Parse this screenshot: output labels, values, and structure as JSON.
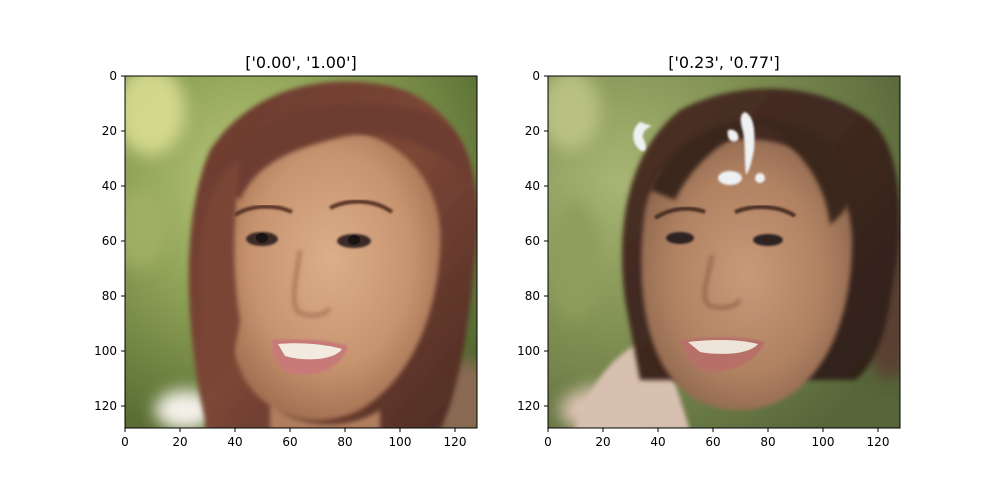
{
  "figure": {
    "panels": [
      {
        "title": "['0.00', '1.00']",
        "image": "generated-face-adult-woman",
        "xlim": [
          0,
          128
        ],
        "ylim": [
          128,
          0
        ],
        "xticks": [
          0,
          20,
          40,
          60,
          80,
          100,
          120
        ],
        "yticks": [
          0,
          20,
          40,
          60,
          80,
          100,
          120
        ]
      },
      {
        "title": "['0.23', '0.77']",
        "image": "generated-face-child",
        "xlim": [
          0,
          128
        ],
        "ylim": [
          128,
          0
        ],
        "xticks": [
          0,
          20,
          40,
          60,
          80,
          100,
          120
        ],
        "yticks": [
          0,
          20,
          40,
          60,
          80,
          100,
          120
        ]
      }
    ]
  },
  "chart_data": [
    {
      "type": "image",
      "title": "['0.00', '1.00']",
      "xlabel": "",
      "ylabel": "",
      "xlim": [
        0,
        128
      ],
      "ylim": [
        128,
        0
      ],
      "xticks": [
        0,
        20,
        40,
        60,
        80,
        100,
        120
      ],
      "yticks": [
        0,
        20,
        40,
        60,
        80,
        100,
        120
      ],
      "grid": false
    },
    {
      "type": "image",
      "title": "['0.23', '0.77']",
      "xlabel": "",
      "ylabel": "",
      "xlim": [
        0,
        128
      ],
      "ylim": [
        128,
        0
      ],
      "xticks": [
        0,
        20,
        40,
        60,
        80,
        100,
        120
      ],
      "yticks": [
        0,
        20,
        40,
        60,
        80,
        100,
        120
      ],
      "grid": false
    }
  ]
}
